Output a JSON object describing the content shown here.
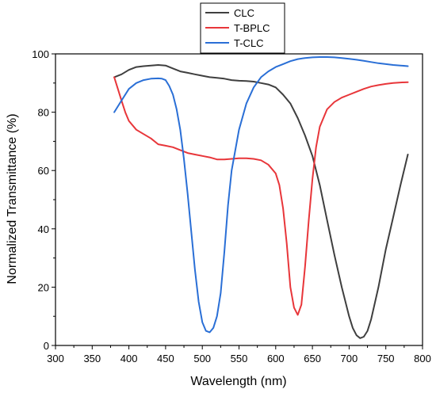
{
  "chart_data": {
    "type": "line",
    "title": "",
    "xlabel": "Wavelength (nm)",
    "ylabel": "Normalized Transmittance (%)",
    "xlim": [
      300,
      800
    ],
    "ylim": [
      0,
      100
    ],
    "xticks": [
      300,
      350,
      400,
      450,
      500,
      550,
      600,
      650,
      700,
      750,
      800
    ],
    "yticks": [
      0,
      20,
      40,
      60,
      80,
      100
    ],
    "grid": false,
    "legend_position": "top-center",
    "series": [
      {
        "name": "CLC",
        "color": "#3f3f3f",
        "x": [
          380,
          390,
          400,
          410,
          420,
          430,
          440,
          450,
          460,
          470,
          480,
          490,
          500,
          510,
          520,
          530,
          540,
          550,
          560,
          570,
          580,
          590,
          600,
          610,
          620,
          630,
          640,
          650,
          660,
          670,
          680,
          690,
          700,
          705,
          710,
          715,
          720,
          725,
          730,
          740,
          750,
          760,
          770,
          780
        ],
        "y": [
          92,
          93,
          94.5,
          95.5,
          95.8,
          96,
          96.2,
          96,
          95,
          94,
          93.5,
          93,
          92.5,
          92,
          91.8,
          91.5,
          91,
          90.8,
          90.7,
          90.5,
          90,
          89.5,
          88.5,
          86,
          83,
          78,
          72,
          65,
          55,
          43,
          31,
          20,
          10,
          6,
          3.5,
          2.5,
          3,
          5,
          9,
          20,
          33,
          44,
          55,
          65.5
        ]
      },
      {
        "name": "T-BPLC",
        "color": "#e8363a",
        "x": [
          380,
          385,
          390,
          395,
          400,
          410,
          420,
          430,
          440,
          450,
          460,
          470,
          480,
          490,
          500,
          510,
          520,
          530,
          540,
          550,
          560,
          570,
          580,
          590,
          600,
          605,
          610,
          615,
          620,
          625,
          630,
          635,
          640,
          645,
          650,
          655,
          660,
          670,
          680,
          690,
          700,
          710,
          720,
          730,
          740,
          750,
          760,
          770,
          780
        ],
        "y": [
          92,
          88,
          84,
          80,
          77,
          74,
          72.5,
          71,
          69,
          68.5,
          68,
          67,
          66,
          65.5,
          65,
          64.5,
          63.8,
          63.8,
          64,
          64.2,
          64.2,
          64,
          63.5,
          62,
          59,
          55,
          47,
          35,
          20,
          13,
          10.5,
          14,
          27,
          43,
          57,
          68,
          75,
          81,
          83.5,
          85,
          86,
          87,
          88,
          88.8,
          89.3,
          89.7,
          90,
          90.2,
          90.3
        ]
      },
      {
        "name": "T-CLC",
        "color": "#2a6fd6",
        "x": [
          380,
          390,
          400,
          410,
          420,
          430,
          440,
          445,
          450,
          455,
          460,
          465,
          470,
          475,
          480,
          485,
          490,
          495,
          500,
          505,
          510,
          515,
          520,
          525,
          530,
          535,
          540,
          550,
          560,
          570,
          580,
          590,
          600,
          610,
          620,
          630,
          640,
          650,
          660,
          670,
          680,
          690,
          700,
          710,
          720,
          730,
          740,
          750,
          760,
          770,
          780
        ],
        "y": [
          80,
          84,
          88,
          90,
          91,
          91.5,
          91.6,
          91.5,
          91,
          89,
          86,
          81,
          74,
          64,
          52,
          39,
          26,
          15,
          8,
          5,
          4.5,
          6,
          10,
          18,
          32,
          48,
          60,
          74,
          83,
          88.5,
          92,
          94,
          95.5,
          96.5,
          97.5,
          98.2,
          98.6,
          98.8,
          98.9,
          98.9,
          98.8,
          98.6,
          98.3,
          98,
          97.6,
          97.2,
          96.8,
          96.5,
          96.2,
          96,
          95.8
        ]
      }
    ]
  }
}
